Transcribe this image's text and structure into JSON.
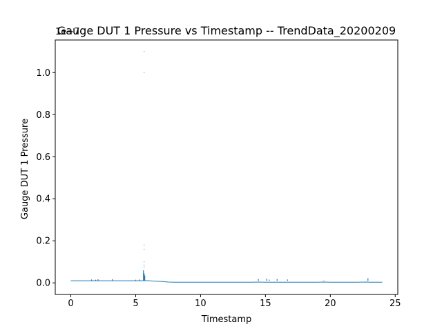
{
  "chart_data": {
    "type": "line",
    "title": "Gauge DUT 1 Pressure  vs Timestamp -- TrendData_20200209",
    "xlabel": "Timestamp",
    "ylabel": "Gauge DUT 1 Pressure",
    "y_offset_label": "1e−7",
    "xlim": [
      -1.2,
      25.2
    ],
    "ylim": [
      -0.055,
      1.155
    ],
    "x_ticks": [
      0,
      5,
      10,
      15,
      20,
      25
    ],
    "x_tick_labels": [
      "0",
      "5",
      "10",
      "15",
      "20",
      "25"
    ],
    "y_ticks": [
      0.0,
      0.2,
      0.4,
      0.6,
      0.8,
      1.0
    ],
    "y_tick_labels": [
      "0.0",
      "0.2",
      "0.4",
      "0.6",
      "0.8",
      "1.0"
    ],
    "grid": false,
    "line_color": "#1f77b4",
    "series": [
      {
        "x": [
          0,
          1.5,
          2.0,
          3.0,
          4.0,
          5.0,
          5.5,
          5.6,
          5.7,
          6.0,
          6.5,
          7.0,
          7.5,
          8.0,
          10.0,
          12.0,
          14.0,
          14.5,
          15.0,
          15.5,
          16.0,
          16.5,
          17.0,
          19.0,
          19.5,
          20.0,
          22.0,
          22.9,
          23.0,
          24.0
        ],
        "y": [
          0.01,
          0.01,
          0.01,
          0.01,
          0.01,
          0.01,
          0.01,
          0.012,
          0.011,
          0.01,
          0.008,
          0.007,
          0.004,
          0.003,
          0.003,
          0.003,
          0.003,
          0.004,
          0.003,
          0.003,
          0.003,
          0.003,
          0.003,
          0.003,
          0.004,
          0.003,
          0.003,
          0.004,
          0.003,
          0.003
        ]
      }
    ],
    "spikes": [
      {
        "x": 1.6,
        "top": 0.016
      },
      {
        "x": 1.9,
        "top": 0.015
      },
      {
        "x": 2.1,
        "top": 0.017
      },
      {
        "x": 3.2,
        "top": 0.017
      },
      {
        "x": 5.0,
        "top": 0.015
      },
      {
        "x": 5.3,
        "top": 0.016
      },
      {
        "x": 5.6,
        "top": 0.06
      },
      {
        "x": 5.65,
        "top": 0.045
      },
      {
        "x": 5.7,
        "top": 0.035
      },
      {
        "x": 14.45,
        "top": 0.018
      },
      {
        "x": 15.1,
        "top": 0.02
      },
      {
        "x": 15.3,
        "top": 0.015
      },
      {
        "x": 15.9,
        "top": 0.018
      },
      {
        "x": 16.7,
        "top": 0.016
      },
      {
        "x": 19.5,
        "top": 0.012
      },
      {
        "x": 19.7,
        "top": 0.01
      },
      {
        "x": 22.9,
        "top": 0.022
      }
    ],
    "outliers": [
      {
        "x": 5.65,
        "y": 1.1
      },
      {
        "x": 5.65,
        "y": 1.0
      },
      {
        "x": 5.65,
        "y": 0.18
      },
      {
        "x": 5.65,
        "y": 0.16
      },
      {
        "x": 5.65,
        "y": 0.1
      },
      {
        "x": 5.65,
        "y": 0.085
      },
      {
        "x": 5.65,
        "y": 0.075
      }
    ]
  }
}
